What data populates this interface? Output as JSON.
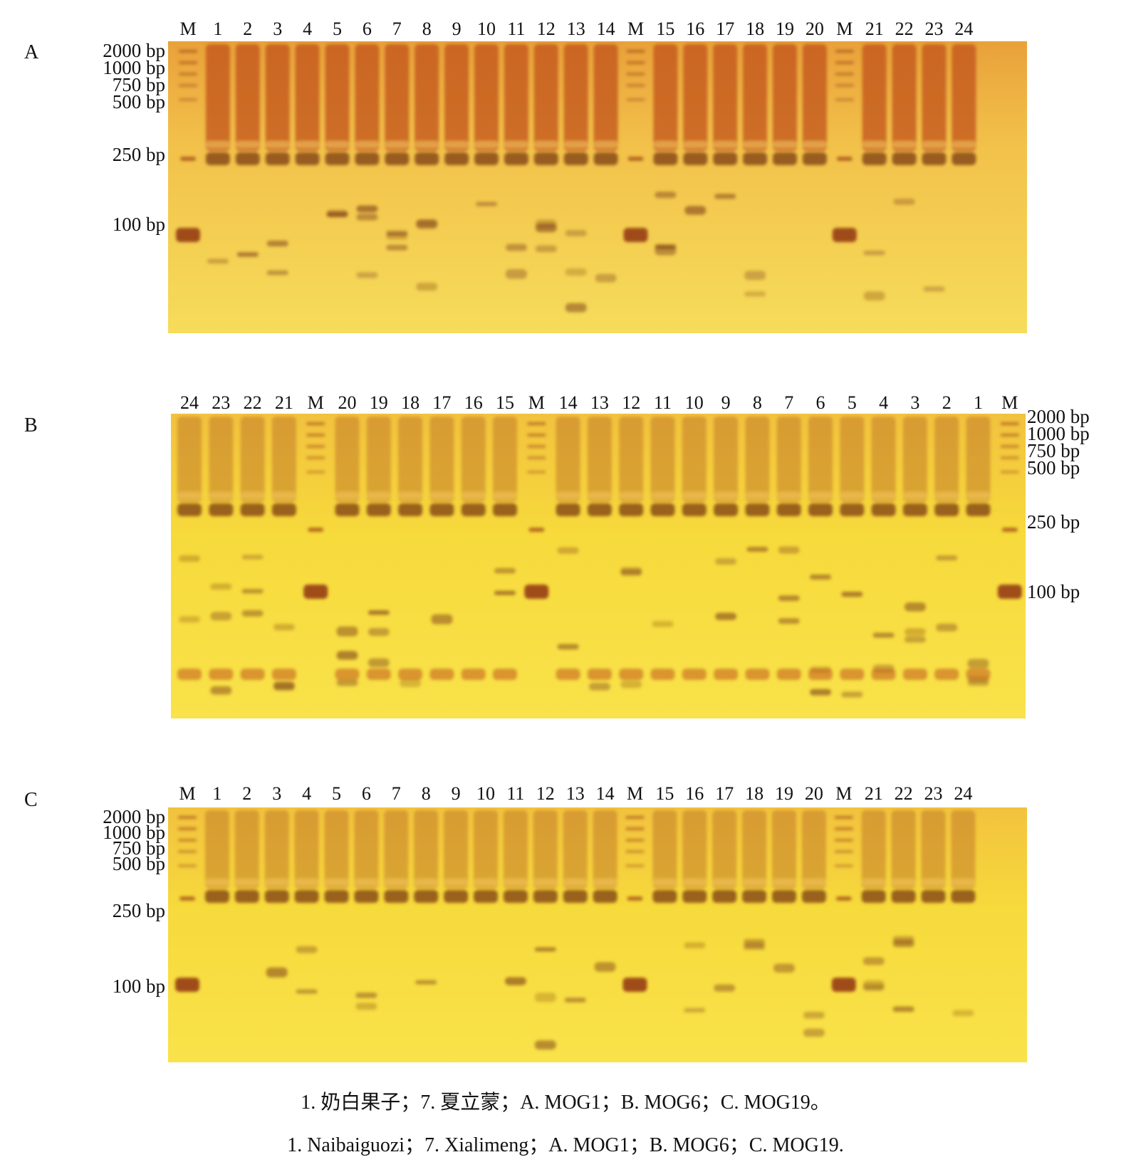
{
  "figure": {
    "panels": [
      {
        "id": "A",
        "lanes": [
          "M",
          "1",
          "2",
          "3",
          "4",
          "5",
          "6",
          "7",
          "8",
          "9",
          "10",
          "11",
          "12",
          "13",
          "14",
          "M",
          "15",
          "16",
          "17",
          "18",
          "19",
          "20",
          "M",
          "21",
          "22",
          "23",
          "24"
        ],
        "size_labels": [
          "2000 bp",
          "1000 bp",
          "750 bp",
          "500 bp",
          "250 bp",
          "100 bp"
        ],
        "size_label_side": "left",
        "style": "orange"
      },
      {
        "id": "B",
        "lanes": [
          "24",
          "23",
          "22",
          "21",
          "M",
          "20",
          "19",
          "18",
          "17",
          "16",
          "15",
          "M",
          "14",
          "13",
          "12",
          "11",
          "10",
          "9",
          "8",
          "7",
          "6",
          "5",
          "4",
          "3",
          "2",
          "1",
          "M"
        ],
        "size_labels": [
          "2000 bp",
          "1000 bp",
          "750 bp",
          "500 bp",
          "250 bp",
          "100 bp"
        ],
        "size_label_side": "right",
        "style": "yellow"
      },
      {
        "id": "C",
        "lanes": [
          "M",
          "1",
          "2",
          "3",
          "4",
          "5",
          "6",
          "7",
          "8",
          "9",
          "10",
          "11",
          "12",
          "13",
          "14",
          "M",
          "15",
          "16",
          "17",
          "18",
          "19",
          "20",
          "M",
          "21",
          "22",
          "23",
          "24"
        ],
        "size_labels": [
          "2000 bp",
          "1000 bp",
          "750 bp",
          "500 bp",
          "250 bp",
          "100 bp"
        ],
        "size_label_side": "left",
        "style": "yellow"
      }
    ],
    "caption_cn": "1. 奶白果子；7. 夏立蒙；A. MOG1；B. MOG6；C. MOG19。",
    "caption_en": "1. Naibaiguozi；7. Xialimeng；A. MOG1；B. MOG6；C. MOG19.",
    "colors": {
      "gel_orange": "#e8a83a",
      "gel_yellow": "#f5d63a",
      "band_dark": "#7a3a12",
      "marker_band": "#9b4513"
    }
  }
}
